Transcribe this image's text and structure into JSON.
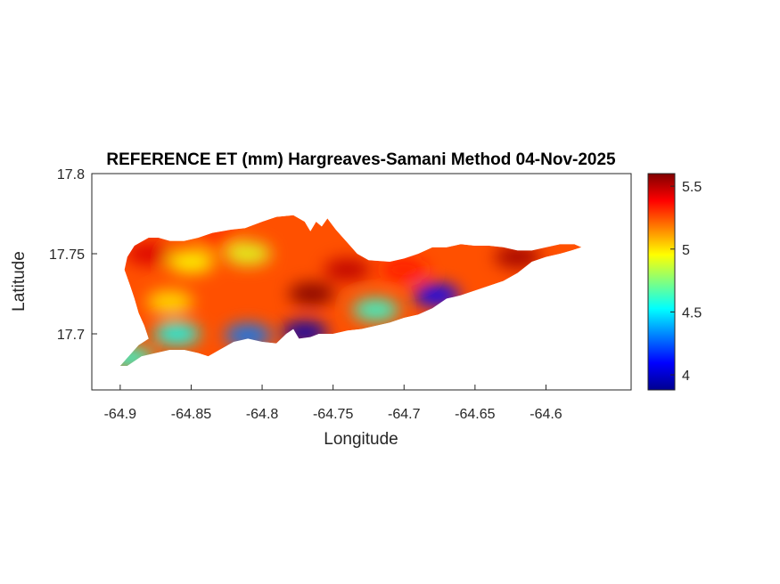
{
  "chart_data": {
    "type": "heatmap",
    "title": "REFERENCE ET (mm) Hargreaves-Samani Method  04-Nov-2025",
    "xlabel": "Longitude",
    "ylabel": "Latitude",
    "xlim": [
      -64.92,
      -64.54
    ],
    "ylim": [
      17.665,
      17.8
    ],
    "xticks": [
      -64.9,
      -64.85,
      -64.8,
      -64.75,
      -64.7,
      -64.65,
      -64.6
    ],
    "xtick_labels": [
      "-64.9",
      "-64.85",
      "-64.8",
      "-64.75",
      "-64.7",
      "-64.65",
      "-64.6"
    ],
    "yticks": [
      17.7,
      17.75,
      17.8
    ],
    "ytick_labels": [
      "17.7",
      "17.75",
      "17.8"
    ],
    "colorbar": {
      "colormap": "jet",
      "range": [
        3.88,
        5.6
      ],
      "ticks": [
        4,
        4.5,
        5,
        5.5
      ],
      "tick_labels": [
        "4",
        "4.5",
        "5",
        "5.5"
      ]
    },
    "outline": [
      [
        -64.9,
        17.68
      ],
      [
        -64.893,
        17.687
      ],
      [
        -64.887,
        17.693
      ],
      [
        -64.88,
        17.697
      ],
      [
        -64.883,
        17.705
      ],
      [
        -64.887,
        17.713
      ],
      [
        -64.89,
        17.722
      ],
      [
        -64.893,
        17.73
      ],
      [
        -64.897,
        17.74
      ],
      [
        -64.895,
        17.748
      ],
      [
        -64.89,
        17.755
      ],
      [
        -64.88,
        17.76
      ],
      [
        -64.873,
        17.76
      ],
      [
        -64.865,
        17.758
      ],
      [
        -64.855,
        17.758
      ],
      [
        -64.845,
        17.76
      ],
      [
        -64.835,
        17.763
      ],
      [
        -64.822,
        17.765
      ],
      [
        -64.812,
        17.766
      ],
      [
        -64.8,
        17.77
      ],
      [
        -64.79,
        17.773
      ],
      [
        -64.778,
        17.774
      ],
      [
        -64.77,
        17.77
      ],
      [
        -64.766,
        17.764
      ],
      [
        -64.762,
        17.77
      ],
      [
        -64.758,
        17.767
      ],
      [
        -64.754,
        17.772
      ],
      [
        -64.748,
        17.765
      ],
      [
        -64.74,
        17.757
      ],
      [
        -64.733,
        17.75
      ],
      [
        -64.725,
        17.746
      ],
      [
        -64.71,
        17.745
      ],
      [
        -64.7,
        17.747
      ],
      [
        -64.69,
        17.75
      ],
      [
        -64.68,
        17.754
      ],
      [
        -64.67,
        17.754
      ],
      [
        -64.66,
        17.756
      ],
      [
        -64.65,
        17.755
      ],
      [
        -64.64,
        17.755
      ],
      [
        -64.63,
        17.754
      ],
      [
        -64.62,
        17.752
      ],
      [
        -64.61,
        17.752
      ],
      [
        -64.6,
        17.754
      ],
      [
        -64.59,
        17.756
      ],
      [
        -64.58,
        17.756
      ],
      [
        -64.575,
        17.754
      ],
      [
        -64.582,
        17.752
      ],
      [
        -64.59,
        17.75
      ],
      [
        -64.6,
        17.748
      ],
      [
        -64.61,
        17.745
      ],
      [
        -64.62,
        17.738
      ],
      [
        -64.63,
        17.733
      ],
      [
        -64.64,
        17.73
      ],
      [
        -64.65,
        17.727
      ],
      [
        -64.66,
        17.724
      ],
      [
        -64.67,
        17.722
      ],
      [
        -64.68,
        17.716
      ],
      [
        -64.69,
        17.712
      ],
      [
        -64.7,
        17.71
      ],
      [
        -64.71,
        17.707
      ],
      [
        -64.72,
        17.705
      ],
      [
        -64.73,
        17.703
      ],
      [
        -64.74,
        17.702
      ],
      [
        -64.75,
        17.7
      ],
      [
        -64.76,
        17.7
      ],
      [
        -64.766,
        17.698
      ],
      [
        -64.774,
        17.697
      ],
      [
        -64.778,
        17.703
      ],
      [
        -64.783,
        17.7
      ],
      [
        -64.79,
        17.694
      ],
      [
        -64.8,
        17.695
      ],
      [
        -64.81,
        17.697
      ],
      [
        -64.82,
        17.695
      ],
      [
        -64.83,
        17.69
      ],
      [
        -64.838,
        17.686
      ],
      [
        -64.845,
        17.688
      ],
      [
        -64.855,
        17.69
      ],
      [
        -64.865,
        17.69
      ],
      [
        -64.875,
        17.688
      ],
      [
        -64.885,
        17.686
      ],
      [
        -64.895,
        17.68
      ],
      [
        -64.9,
        17.68
      ]
    ],
    "field_hotspots": [
      {
        "lon": -64.765,
        "lat": 17.725,
        "value": 5.6
      },
      {
        "lon": -64.74,
        "lat": 17.74,
        "value": 5.5
      },
      {
        "lon": -64.62,
        "lat": 17.748,
        "value": 5.55
      },
      {
        "lon": -64.7,
        "lat": 17.74,
        "value": 5.35
      },
      {
        "lon": -64.88,
        "lat": 17.75,
        "value": 5.45
      },
      {
        "lon": -64.83,
        "lat": 17.76,
        "value": 5.3
      },
      {
        "lon": -64.85,
        "lat": 17.745,
        "value": 4.95
      },
      {
        "lon": -64.81,
        "lat": 17.75,
        "value": 4.9
      },
      {
        "lon": -64.865,
        "lat": 17.72,
        "value": 5.0
      },
      {
        "lon": -64.677,
        "lat": 17.724,
        "value": 4.1
      },
      {
        "lon": -64.72,
        "lat": 17.715,
        "value": 4.6
      },
      {
        "lon": -64.77,
        "lat": 17.701,
        "value": 3.95
      },
      {
        "lon": -64.81,
        "lat": 17.699,
        "value": 4.3
      },
      {
        "lon": -64.86,
        "lat": 17.7,
        "value": 4.55
      },
      {
        "lon": -64.893,
        "lat": 17.685,
        "value": 4.6
      }
    ],
    "base_value": 5.25
  }
}
